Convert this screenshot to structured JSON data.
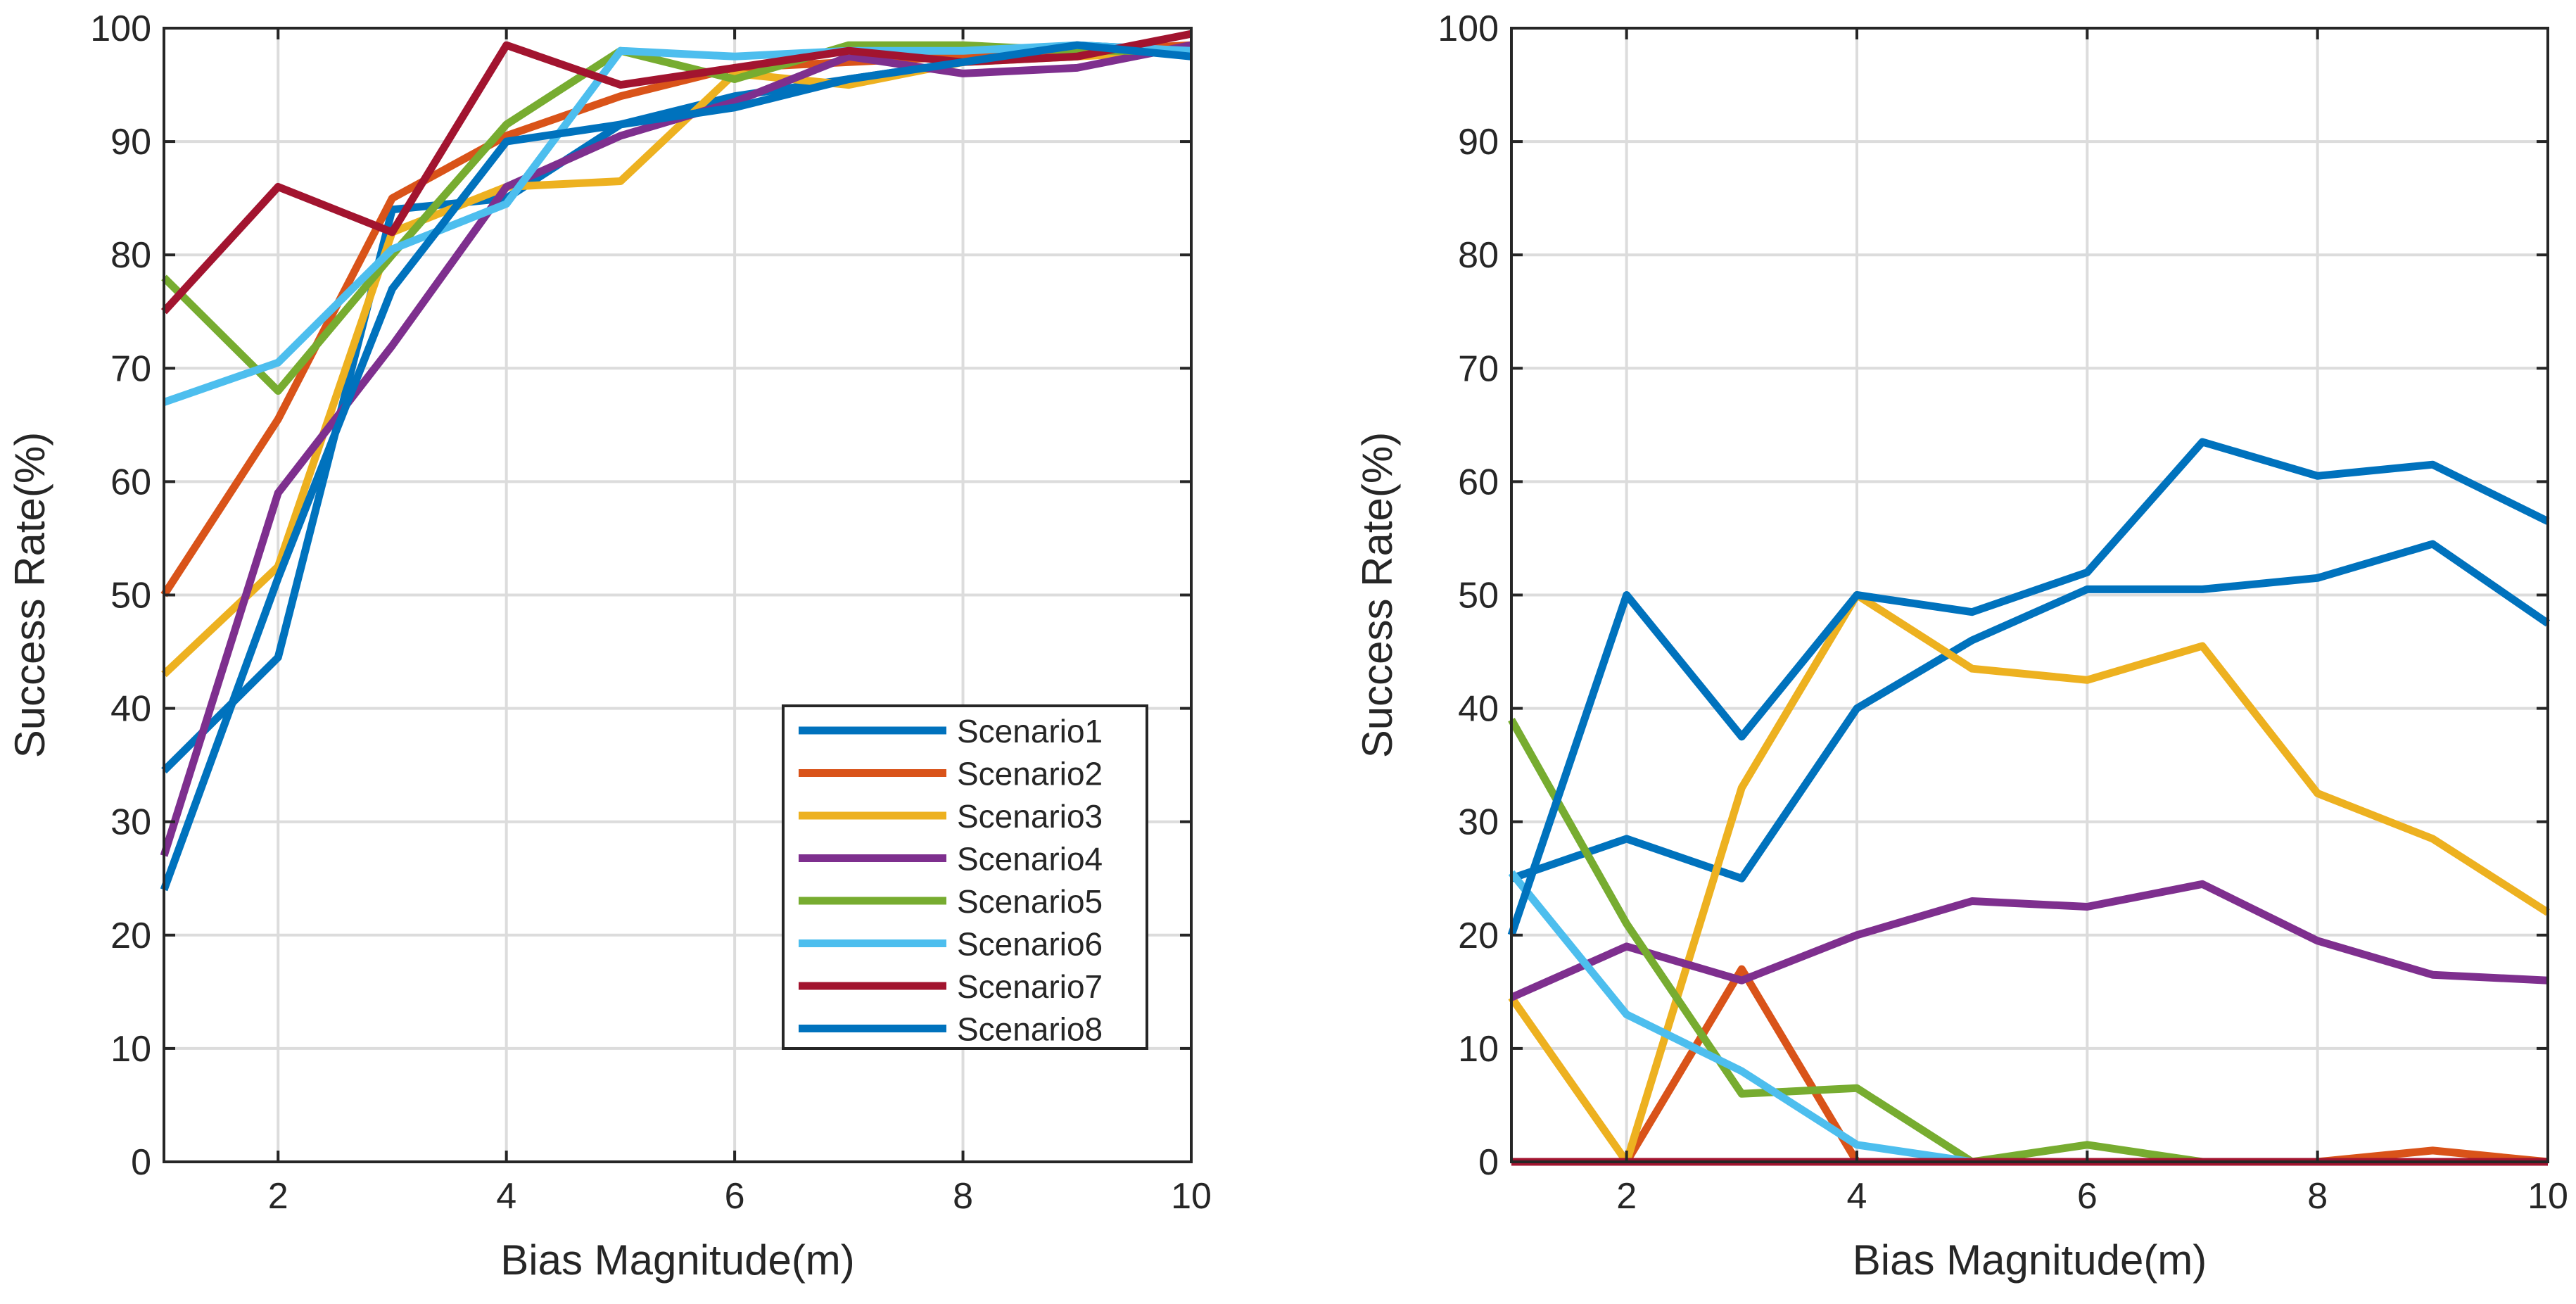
{
  "chart_data": [
    {
      "type": "line",
      "title": "",
      "xlabel": "Bias Magnitude(m)",
      "ylabel": "Success Rate(%)",
      "xlim": [
        1,
        10
      ],
      "ylim": [
        0,
        100
      ],
      "xticks": [
        2,
        4,
        6,
        8,
        10
      ],
      "yticks": [
        0,
        10,
        20,
        30,
        40,
        50,
        60,
        70,
        80,
        90,
        100
      ],
      "grid": true,
      "legend": {
        "location": "bottom-right",
        "entries": [
          "Scenario1",
          "Scenario2",
          "Scenario3",
          "Scenario4",
          "Scenario5",
          "Scenario6",
          "Scenario7",
          "Scenario8"
        ]
      },
      "x": [
        1,
        2,
        3,
        4,
        5,
        6,
        7,
        8,
        9,
        10
      ],
      "series": [
        {
          "name": "Scenario1",
          "color": "#0072BD",
          "values": [
            34.5,
            44.5,
            84.0,
            85.0,
            91.5,
            94.0,
            95.5,
            97.0,
            98.5,
            98.0
          ]
        },
        {
          "name": "Scenario2",
          "color": "#D95319",
          "values": [
            50.0,
            65.5,
            85.0,
            90.5,
            94.0,
            96.5,
            97.0,
            97.5,
            98.0,
            98.5
          ]
        },
        {
          "name": "Scenario3",
          "color": "#EDB120",
          "values": [
            43.0,
            52.5,
            82.0,
            86.0,
            86.5,
            96.0,
            95.0,
            97.0,
            97.5,
            98.0
          ]
        },
        {
          "name": "Scenario4",
          "color": "#7E2F8E",
          "values": [
            27.0,
            59.0,
            72.0,
            86.0,
            90.5,
            93.5,
            97.5,
            96.0,
            96.5,
            98.5
          ]
        },
        {
          "name": "Scenario5",
          "color": "#77AC30",
          "values": [
            78.0,
            68.0,
            80.0,
            91.5,
            98.0,
            95.5,
            98.5,
            98.5,
            98.0,
            98.0
          ]
        },
        {
          "name": "Scenario6",
          "color": "#4DBEEE",
          "values": [
            67.0,
            70.5,
            80.5,
            84.5,
            98.0,
            97.5,
            98.0,
            98.0,
            98.5,
            98.0
          ]
        },
        {
          "name": "Scenario7",
          "color": "#A2142F",
          "values": [
            75.0,
            86.0,
            82.0,
            98.5,
            95.0,
            96.5,
            98.0,
            97.0,
            97.5,
            99.5
          ]
        },
        {
          "name": "Scenario8",
          "color": "#0072BD",
          "values": [
            24.0,
            51.5,
            77.0,
            90.0,
            91.5,
            93.0,
            95.5,
            97.0,
            98.5,
            97.5
          ]
        }
      ]
    },
    {
      "type": "line",
      "title": "",
      "xlabel": "Bias Magnitude(m)",
      "ylabel": "Success Rate(%)",
      "xlim": [
        1,
        10
      ],
      "ylim": [
        0,
        100
      ],
      "xticks": [
        2,
        4,
        6,
        8,
        10
      ],
      "yticks": [
        0,
        10,
        20,
        30,
        40,
        50,
        60,
        70,
        80,
        90,
        100
      ],
      "grid": true,
      "x": [
        1,
        2,
        3,
        4,
        5,
        6,
        7,
        8,
        9,
        10
      ],
      "series": [
        {
          "name": "Scenario1",
          "color": "#0072BD",
          "values": [
            25.0,
            28.5,
            25.0,
            40.0,
            46.0,
            50.5,
            50.5,
            51.5,
            54.5,
            47.5
          ]
        },
        {
          "name": "Scenario2",
          "color": "#D95319",
          "values": [
            0,
            0,
            17.0,
            0,
            0,
            0,
            0,
            0,
            1.0,
            0
          ]
        },
        {
          "name": "Scenario3",
          "color": "#EDB120",
          "values": [
            14.5,
            0,
            33.0,
            50.0,
            43.5,
            42.5,
            45.5,
            32.5,
            28.5,
            22.0
          ]
        },
        {
          "name": "Scenario4",
          "color": "#7E2F8E",
          "values": [
            14.5,
            19.0,
            16.0,
            20.0,
            23.0,
            22.5,
            24.5,
            19.5,
            16.5,
            16.0
          ]
        },
        {
          "name": "Scenario5",
          "color": "#77AC30",
          "values": [
            39.0,
            21.0,
            6.0,
            6.5,
            0,
            1.5,
            0,
            0,
            0,
            0
          ]
        },
        {
          "name": "Scenario6",
          "color": "#4DBEEE",
          "values": [
            25.5,
            13.0,
            8.0,
            1.5,
            0,
            0,
            0,
            0,
            0,
            0
          ]
        },
        {
          "name": "Scenario7",
          "color": "#A2142F",
          "values": [
            0,
            0,
            0,
            0,
            0,
            0,
            0,
            0,
            0,
            0
          ]
        },
        {
          "name": "Scenario8",
          "color": "#0072BD",
          "values": [
            20.0,
            50.0,
            37.5,
            50.0,
            48.5,
            52.0,
            63.5,
            60.5,
            61.5,
            56.5
          ]
        }
      ]
    }
  ]
}
